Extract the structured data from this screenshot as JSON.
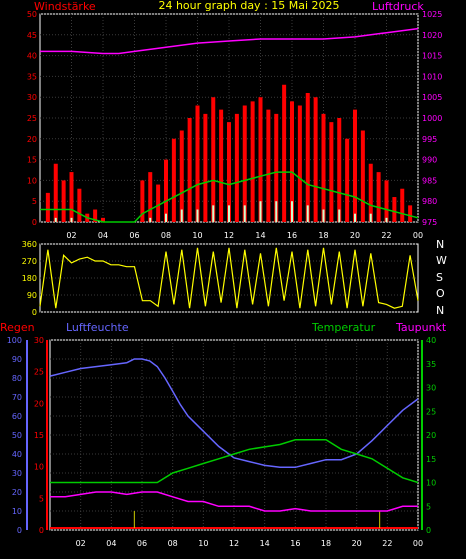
{
  "colors": {
    "wind": "#ff0000",
    "gust_max": "#ff0000",
    "wind_avg": "#00cc00",
    "wind_min": "#ccffcc",
    "pressure": "#ff00ff",
    "direction": "#ffff00",
    "humidity": "#6666ff",
    "temperature": "#00cc00",
    "dewpoint": "#ff00ff",
    "rain": "#cccc00",
    "title": "#ffff00",
    "grid": "#3a3a3a",
    "axis": "#ffffff"
  },
  "header": {
    "left_label": "Windstärke",
    "title": "24 hour graph day : 15 Mai 2025",
    "right_label": "Luftdruck"
  },
  "direction_labels": [
    "N",
    "W",
    "S",
    "O",
    "N"
  ],
  "lower_labels": {
    "rain": "Regen",
    "humidity": "Luftfeuchte",
    "temperature": "Temperatur",
    "dewpoint": "Taupunkt"
  },
  "time_ticks": [
    "02",
    "04",
    "06",
    "08",
    "10",
    "12",
    "14",
    "16",
    "18",
    "20",
    "22",
    "00"
  ],
  "chart_data": [
    {
      "type": "line",
      "name": "wind-pressure",
      "xlim": [
        0,
        24
      ],
      "ylim_left": [
        0,
        50
      ],
      "yticks_left": [
        0,
        5,
        10,
        15,
        20,
        25,
        30,
        35,
        40,
        45,
        50
      ],
      "ylim_right": [
        975,
        1025
      ],
      "yticks_right": [
        975,
        980,
        985,
        990,
        995,
        1000,
        1005,
        1010,
        1015,
        1020,
        1025
      ],
      "grid": true,
      "series": [
        {
          "key": "gust_max",
          "x": [
            0.5,
            1,
            1.5,
            2,
            2.5,
            3,
            3.5,
            4,
            4.5,
            5,
            5.5,
            6,
            6.5,
            7,
            7.5,
            8,
            8.5,
            9,
            9.5,
            10,
            10.5,
            11,
            11.5,
            12,
            12.5,
            13,
            13.5,
            14,
            14.5,
            15,
            15.5,
            16,
            16.5,
            17,
            17.5,
            18,
            18.5,
            19,
            19.5,
            20,
            20.5,
            21,
            21.5,
            22,
            22.5,
            23,
            23.5
          ],
          "values": [
            7,
            14,
            10,
            12,
            8,
            2,
            3,
            1,
            0,
            0,
            0,
            0,
            10,
            12,
            9,
            15,
            20,
            22,
            25,
            28,
            26,
            30,
            27,
            24,
            26,
            28,
            29,
            30,
            27,
            26,
            33,
            29,
            28,
            31,
            30,
            26,
            24,
            25,
            20,
            27,
            22,
            14,
            12,
            10,
            6,
            8,
            4
          ]
        },
        {
          "key": "wind_avg",
          "x": [
            0,
            1,
            2,
            3,
            4,
            5,
            6,
            6.5,
            7,
            8,
            9,
            10,
            11,
            12,
            13,
            14,
            15,
            16,
            17,
            18,
            19,
            20,
            21,
            22,
            23,
            24
          ],
          "values": [
            3,
            3,
            3,
            1,
            0,
            0,
            0,
            2,
            3,
            5,
            7,
            9,
            10,
            9,
            10,
            11,
            12,
            12,
            9,
            8,
            7,
            6,
            4,
            3,
            2,
            1
          ]
        },
        {
          "key": "wind_min",
          "x": [
            1,
            2,
            3,
            6.5,
            7,
            8,
            9,
            10,
            11,
            12,
            13,
            14,
            15,
            16,
            17,
            18,
            19,
            20,
            21,
            22
          ],
          "values": [
            1,
            1,
            0,
            0,
            1,
            2,
            3,
            3,
            4,
            4,
            4,
            5,
            5,
            5,
            4,
            3,
            3,
            2,
            2,
            1
          ]
        },
        {
          "key": "pressure",
          "x": [
            0,
            2,
            4,
            5,
            6,
            8,
            10,
            12,
            14,
            16,
            18,
            20,
            22,
            24
          ],
          "values": [
            1016,
            1016,
            1015.5,
            1015.5,
            1016,
            1017,
            1018,
            1018.5,
            1019,
            1019,
            1019,
            1019.5,
            1020.5,
            1021.5
          ]
        }
      ]
    },
    {
      "type": "line",
      "name": "wind-direction",
      "xlim": [
        0,
        24
      ],
      "ylim": [
        0,
        360
      ],
      "yticks": [
        0,
        90,
        180,
        270,
        360
      ],
      "series": [
        {
          "key": "direction",
          "x": [
            0,
            0.5,
            1,
            1.5,
            2,
            2.5,
            3,
            3.5,
            4,
            4.5,
            5,
            5.5,
            6,
            6.5,
            7,
            7.5,
            8,
            8.5,
            9,
            9.5,
            10,
            10.5,
            11,
            11.5,
            12,
            12.5,
            13,
            13.5,
            14,
            14.5,
            15,
            15.5,
            16,
            16.5,
            17,
            17.5,
            18,
            18.5,
            19,
            19.5,
            20,
            20.5,
            21,
            21.5,
            22,
            22.5,
            23,
            23.5,
            24
          ],
          "values": [
            30,
            330,
            20,
            300,
            260,
            280,
            290,
            270,
            270,
            250,
            250,
            240,
            240,
            60,
            60,
            30,
            320,
            40,
            330,
            20,
            340,
            30,
            320,
            50,
            340,
            20,
            330,
            40,
            310,
            30,
            340,
            60,
            320,
            20,
            330,
            30,
            340,
            40,
            320,
            20,
            330,
            30,
            310,
            50,
            40,
            20,
            30,
            300,
            60
          ]
        }
      ]
    },
    {
      "type": "line",
      "name": "climate",
      "xlim": [
        0,
        24
      ],
      "ylim_rain": [
        0,
        30
      ],
      "yticks_rain": [
        0,
        5,
        10,
        15,
        20,
        25,
        30
      ],
      "ylim_humidity": [
        0,
        100
      ],
      "yticks_humidity": [
        0,
        10,
        20,
        30,
        40,
        50,
        60,
        70,
        80,
        90,
        100
      ],
      "ylim_temp": [
        0,
        40
      ],
      "yticks_temp": [
        0,
        5,
        10,
        15,
        20,
        25,
        30,
        35,
        40
      ],
      "grid": true,
      "series": [
        {
          "key": "humidity",
          "x": [
            0,
            1,
            2,
            3,
            4,
            5,
            5.5,
            6,
            6.5,
            7,
            7.5,
            8,
            8.5,
            9,
            10,
            11,
            12,
            13,
            14,
            15,
            16,
            17,
            18,
            19,
            20,
            21,
            22,
            23,
            24
          ],
          "values": [
            81,
            83,
            85,
            86,
            87,
            88,
            90,
            90,
            89,
            86,
            80,
            73,
            66,
            60,
            52,
            44,
            38,
            36,
            34,
            33,
            33,
            35,
            37,
            37,
            40,
            47,
            55,
            63,
            69
          ]
        },
        {
          "key": "temperature",
          "x": [
            0,
            1,
            2,
            3,
            4,
            5,
            6,
            7,
            8,
            9,
            10,
            11,
            12,
            13,
            14,
            15,
            16,
            17,
            18,
            19,
            20,
            21,
            22,
            23,
            24
          ],
          "values": [
            10,
            10,
            10,
            10,
            10,
            10,
            10,
            10,
            12,
            13,
            14,
            15,
            16,
            17,
            17.5,
            18,
            19,
            19,
            19,
            17,
            16,
            15,
            13,
            11,
            10
          ]
        },
        {
          "key": "dewpoint",
          "x": [
            0,
            1,
            2,
            3,
            4,
            5,
            6,
            7,
            8,
            9,
            10,
            11,
            12,
            13,
            14,
            15,
            16,
            17,
            18,
            19,
            20,
            21,
            22,
            23,
            24
          ],
          "values": [
            7,
            7,
            7.5,
            8,
            8,
            7.5,
            8,
            8,
            7,
            6,
            6,
            5,
            5,
            5,
            4,
            4,
            4.5,
            4,
            4,
            4,
            4,
            4,
            4,
            5,
            5
          ]
        },
        {
          "key": "rain",
          "x": [
            5.5,
            21.5
          ],
          "values": [
            3,
            3
          ]
        }
      ]
    }
  ]
}
